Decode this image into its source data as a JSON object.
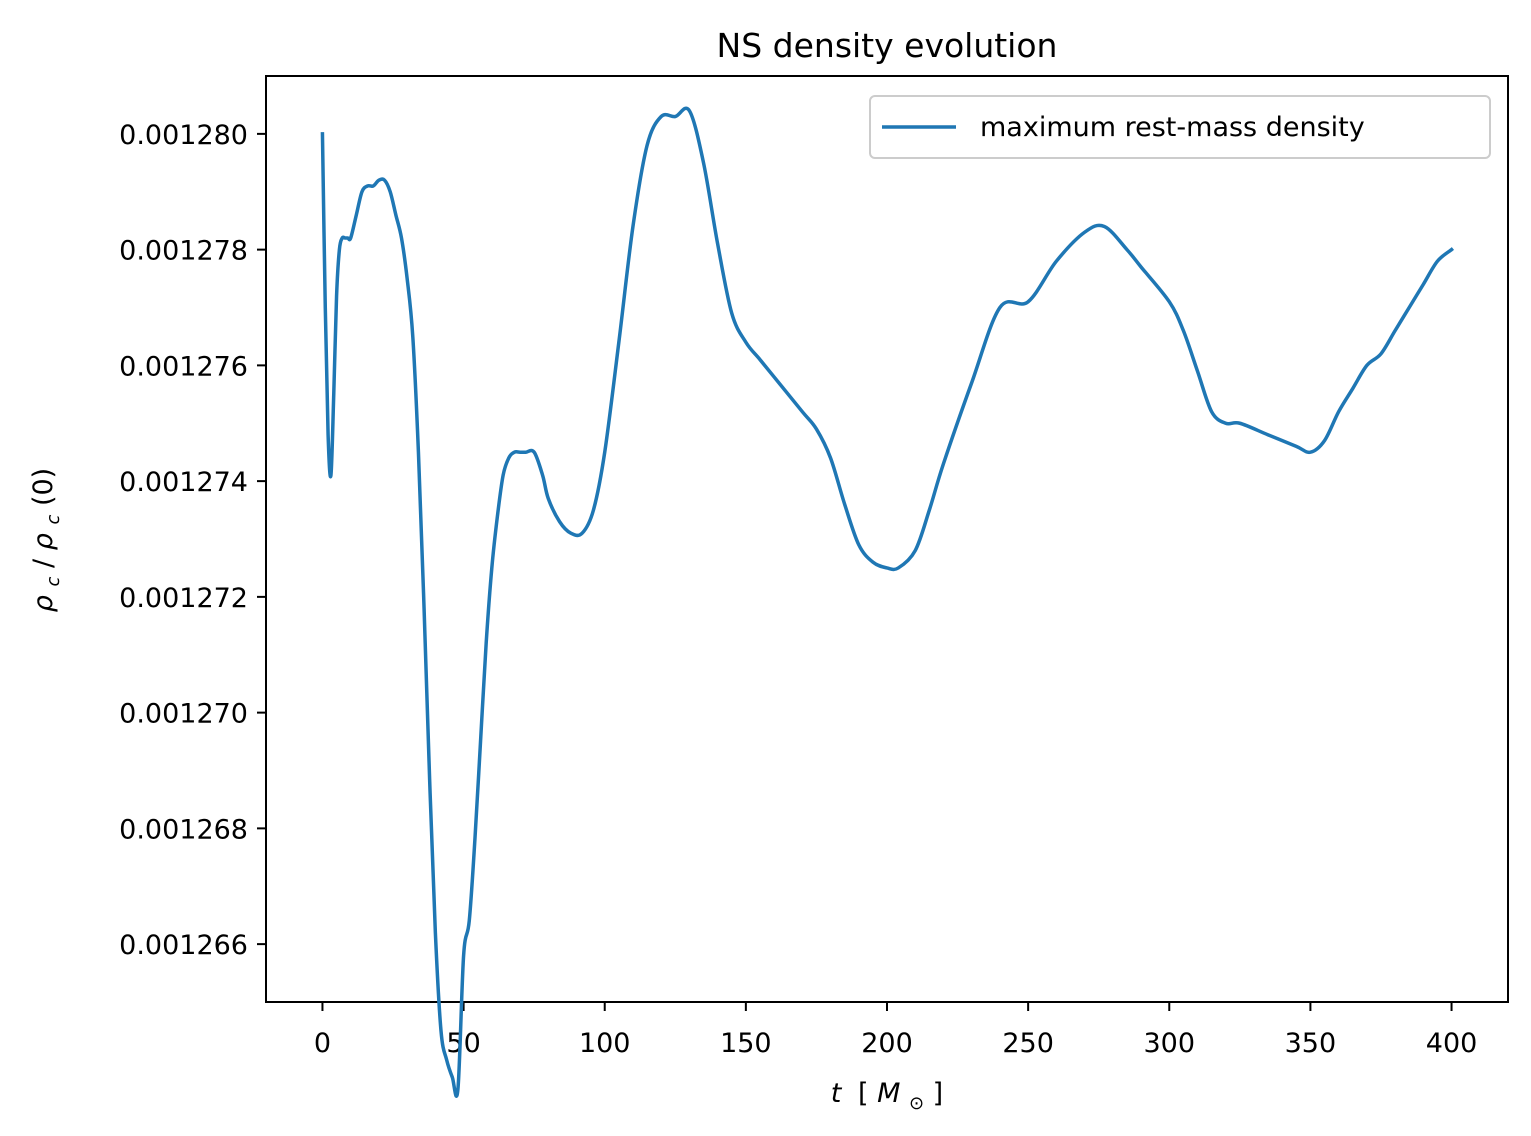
{
  "chart_data": {
    "type": "line",
    "title": "NS density evolution",
    "xlabel": {
      "var": "t",
      "open": "[",
      "sym": "M",
      "sub": "⊙",
      "close": "]"
    },
    "ylabel": {
      "num": "ρ",
      "num_sub": "c",
      "slash": "/",
      "den": "ρ",
      "den_sub": "c",
      "arg": "(0)"
    },
    "xlim": [
      -20,
      420
    ],
    "ylim": [
      0.001265,
      0.001281
    ],
    "xticks": [
      0,
      50,
      100,
      150,
      200,
      250,
      300,
      350,
      400
    ],
    "xtick_labels": [
      "0",
      "50",
      "100",
      "150",
      "200",
      "250",
      "300",
      "350",
      "400"
    ],
    "yticks": [
      0.001266,
      0.001268,
      0.00127,
      0.001272,
      0.001274,
      0.001276,
      0.001278,
      0.00128
    ],
    "ytick_labels": [
      "0.001266",
      "0.001268",
      "0.001270",
      "0.001272",
      "0.001274",
      "0.001276",
      "0.001278",
      "0.001280"
    ],
    "grid": false,
    "legend_position": "upper right",
    "series": [
      {
        "name": "maximum rest-mass density",
        "color": "#1f77b4",
        "x": [
          0,
          1,
          2,
          3,
          4,
          5,
          6,
          7,
          8,
          9,
          10,
          12,
          14,
          16,
          18,
          20,
          22,
          24,
          26,
          28,
          30,
          32,
          34,
          36,
          38,
          40,
          42,
          44,
          46,
          48,
          50,
          52,
          54,
          56,
          58,
          60,
          62,
          64,
          66,
          68,
          70,
          72,
          75,
          78,
          80,
          84,
          88,
          92,
          96,
          100,
          105,
          110,
          115,
          120,
          125,
          130,
          135,
          140,
          145,
          150,
          155,
          160,
          170,
          175,
          180,
          185,
          190,
          195,
          200,
          204,
          210,
          215,
          220,
          230,
          240,
          250,
          260,
          270,
          277,
          285,
          290,
          300,
          305,
          310,
          315,
          320,
          325,
          335,
          345,
          350,
          355,
          360,
          365,
          370,
          375,
          380,
          385,
          390,
          395,
          400
        ],
        "y": [
          0.00128,
          0.001277,
          0.0012748,
          0.0012741,
          0.0012755,
          0.0012772,
          0.001278,
          0.0012782,
          0.0012782,
          0.0012782,
          0.0012782,
          0.0012786,
          0.001279,
          0.0012791,
          0.0012791,
          0.0012792,
          0.0012792,
          0.001279,
          0.0012786,
          0.0012782,
          0.0012775,
          0.0012765,
          0.0012745,
          0.0012718,
          0.0012688,
          0.0012662,
          0.0012645,
          0.001264,
          0.0012637,
          0.0012635,
          0.0012658,
          0.0012664,
          0.0012678,
          0.0012695,
          0.0012712,
          0.0012725,
          0.0012734,
          0.0012741,
          0.0012744,
          0.0012745,
          0.0012745,
          0.0012745,
          0.0012745,
          0.0012741,
          0.0012737,
          0.0012733,
          0.0012731,
          0.0012731,
          0.0012735,
          0.0012745,
          0.0012764,
          0.0012784,
          0.0012798,
          0.0012803,
          0.0012803,
          0.0012804,
          0.0012795,
          0.0012781,
          0.0012769,
          0.0012764,
          0.0012761,
          0.0012758,
          0.0012752,
          0.0012749,
          0.0012744,
          0.0012736,
          0.0012729,
          0.0012726,
          0.0012725,
          0.0012725,
          0.0012728,
          0.0012735,
          0.0012743,
          0.0012757,
          0.001277,
          0.0012771,
          0.0012778,
          0.0012783,
          0.0012784,
          0.001278,
          0.0012777,
          0.0012771,
          0.0012766,
          0.0012759,
          0.0012752,
          0.001275,
          0.001275,
          0.0012748,
          0.0012746,
          0.0012745,
          0.0012747,
          0.0012752,
          0.0012756,
          0.001276,
          0.0012762,
          0.0012766,
          0.001277,
          0.0012774,
          0.0012778,
          0.001278
        ]
      }
    ]
  }
}
